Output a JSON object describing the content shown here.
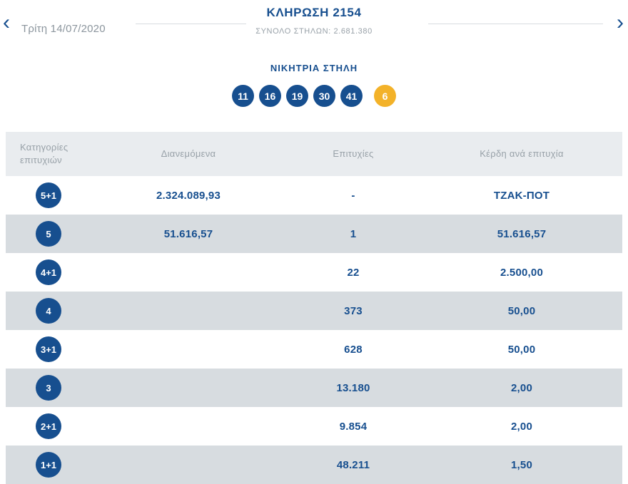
{
  "header": {
    "title": "ΚΛΗΡΩΣΗ 2154",
    "subtitle": "ΣΥΝΟΛΟ ΣΤΗΛΩΝ: 2.681.380",
    "date": "Τρίτη 14/07/2020",
    "prev_icon": "‹",
    "next_icon": "›"
  },
  "winning": {
    "label": "ΝΙΚΗΤΡΙΑ ΣΤΗΛΗ",
    "numbers": [
      "11",
      "16",
      "19",
      "30",
      "41"
    ],
    "joker": "6"
  },
  "table": {
    "headers": [
      "Κατηγορίες επιτυχιών",
      "Διανεμόμενα",
      "Επιτυχίες",
      "Κέρδη ανά επιτυχία"
    ],
    "rows": [
      {
        "category": "5+1",
        "distributed": "2.324.089,93",
        "wins": "-",
        "prize": "ΤΖΑΚ-ΠΟΤ"
      },
      {
        "category": "5",
        "distributed": "51.616,57",
        "wins": "1",
        "prize": "51.616,57"
      },
      {
        "category": "4+1",
        "distributed": "",
        "wins": "22",
        "prize": "2.500,00"
      },
      {
        "category": "4",
        "distributed": "",
        "wins": "373",
        "prize": "50,00"
      },
      {
        "category": "3+1",
        "distributed": "",
        "wins": "628",
        "prize": "50,00"
      },
      {
        "category": "3",
        "distributed": "",
        "wins": "13.180",
        "prize": "2,00"
      },
      {
        "category": "2+1",
        "distributed": "",
        "wins": "9.854",
        "prize": "2,00"
      },
      {
        "category": "1+1",
        "distributed": "",
        "wins": "48.211",
        "prize": "1,50"
      }
    ]
  },
  "colors": {
    "blue": "#174f8f",
    "yellow": "#f3b229",
    "gray_text": "#98a1a8",
    "date_gray": "#8b959d",
    "row_alt": "#d7dce0",
    "header_bg": "#e9ecef",
    "divider": "#d7dce0"
  }
}
